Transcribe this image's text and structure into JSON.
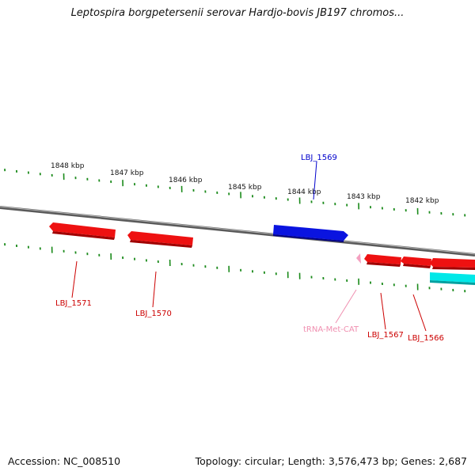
{
  "title": "Leptospira borgpetersenii serovar Hardjo-bovis JB197 chromos...",
  "footer": {
    "accession": "Accession: NC_008510",
    "info": "Topology: circular; Length: 3,576,473 bp; Genes: 2,687"
  },
  "tick_labels": [
    "1848 kbp",
    "1847 kbp",
    "1846 kbp",
    "1845 kbp",
    "1844 kbp",
    "1843 kbp",
    "1842 kbp"
  ],
  "genes": [
    {
      "label": "LBJ_1569",
      "strand": "forward",
      "color": "#0000dd"
    },
    {
      "label": "LBJ_1571",
      "strand": "reverse",
      "color": "#dd0000"
    },
    {
      "label": "LBJ_1570",
      "strand": "reverse",
      "color": "#dd0000"
    },
    {
      "label": "tRNA-Met-CAT",
      "strand": "reverse",
      "color": "#f08fb0"
    },
    {
      "label": "LBJ_1567",
      "strand": "reverse",
      "color": "#dd0000"
    },
    {
      "label": "LBJ_1566",
      "strand": "reverse",
      "color": "#dd0000"
    },
    {
      "label": "",
      "strand": "reverse",
      "color": "#00e5e5"
    }
  ],
  "colors": {
    "backbone": "#7f7f7f",
    "ticks": "#1a8a1a"
  }
}
